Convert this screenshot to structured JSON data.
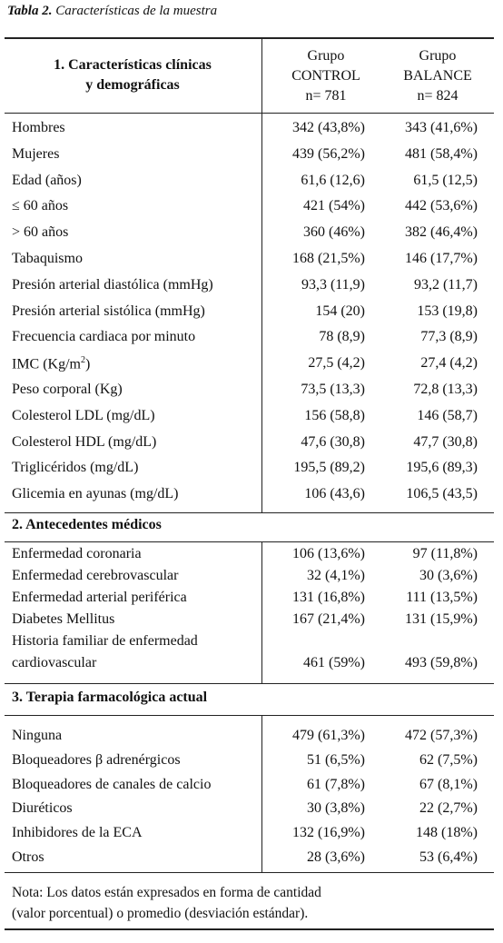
{
  "caption": {
    "bold": "Tabla 2.",
    "italic": " Características de la muestra"
  },
  "header": {
    "title_line1": "1. Características clínicas",
    "title_line2": "y demográficas",
    "col1": [
      "Grupo",
      "CONTROL",
      "n= 781"
    ],
    "col2": [
      "Grupo",
      "BALANCE",
      "n= 824"
    ]
  },
  "section1_rows": [
    {
      "label": "Hombres",
      "control": "342 (43,8%)",
      "balance": "343 (41,6%)"
    },
    {
      "label": "Mujeres",
      "control": "439 (56,2%)",
      "balance": "481 (58,4%)"
    },
    {
      "label": "Edad (años)",
      "control": "61,6 (12,6)",
      "balance": "61,5 (12,5)"
    },
    {
      "label": "≤ 60 años",
      "control": "421 (54%)",
      "balance": "442 (53,6%)"
    },
    {
      "label": "> 60 años",
      "control": "360 (46%)",
      "balance": "382 (46,4%)"
    },
    {
      "label": "Tabaquismo",
      "control": "168 (21,5%)",
      "balance": "146 (17,7%)"
    },
    {
      "label": "Presión arterial diastólica (mmHg)",
      "control": "93,3 (11,9)",
      "balance": "93,2 (11,7)"
    },
    {
      "label": "Presión arterial sistólica (mmHg)",
      "control": "154 (20)",
      "balance": "153 (19,8)"
    },
    {
      "label": "Frecuencia cardiaca por minuto",
      "control": "78 (8,9)",
      "balance": "77,3 (8,9)"
    },
    {
      "label": "IMC (Kg/m",
      "label_sup": "2",
      "label_tail": ")",
      "control": "27,5 (4,2)",
      "balance": "27,4 (4,2)"
    },
    {
      "label": "Peso corporal (Kg)",
      "control": "73,5 (13,3)",
      "balance": "72,8 (13,3)"
    },
    {
      "label": "Colesterol LDL (mg/dL)",
      "control": "156 (58,8)",
      "balance": "146 (58,7)"
    },
    {
      "label": "Colesterol HDL (mg/dL)",
      "control": "47,6 (30,8)",
      "balance": "47,7 (30,8)"
    },
    {
      "label": "Triglicéridos (mg/dL)",
      "control": "195,5 (89,2)",
      "balance": "195,6 (89,3)"
    },
    {
      "label": "Glicemia en ayunas (mg/dL)",
      "control": "106 (43,6)",
      "balance": "106,5 (43,5)"
    }
  ],
  "section2_title": "2. Antecedentes médicos",
  "section2_rows": [
    {
      "label": "Enfermedad coronaria",
      "control": "106 (13,6%)",
      "balance": "97 (11,8%)"
    },
    {
      "label": "Enfermedad cerebrovascular",
      "control": "32 (4,1%)",
      "balance": "30 (3,6%)"
    },
    {
      "label": "Enfermedad arterial periférica",
      "control": "131 (16,8%)",
      "balance": "111 (13,5%)"
    },
    {
      "label": "Diabetes Mellitus",
      "control": "167 (21,4%)",
      "balance": "131 (15,9%)"
    },
    {
      "label": "Historia familiar de enfermedad",
      "control": "",
      "balance": ""
    },
    {
      "label": "cardiovascular",
      "control": "461 (59%)",
      "balance": "493 (59,8%)"
    }
  ],
  "section3_title": "3. Terapia farmacológica actual",
  "section3_rows": [
    {
      "label": "Ninguna",
      "control": "479 (61,3%)",
      "balance": "472 (57,3%)"
    },
    {
      "label": "Bloqueadores β adrenérgicos",
      "control": "51 (6,5%)",
      "balance": "62 (7,5%)"
    },
    {
      "label": "Bloqueadores de canales de calcio",
      "control": "61 (7,8%)",
      "balance": "67 (8,1%)"
    },
    {
      "label": "Diuréticos",
      "control": "30 (3,8%)",
      "balance": "22 (2,7%)"
    },
    {
      "label": "Inhibidores de la ECA",
      "control": "132 (16,9%)",
      "balance": "148 (18%)"
    },
    {
      "label": "Otros",
      "control": "28 (3,6%)",
      "balance": "53 (6,4%)"
    }
  ],
  "note_line1": "Nota: Los datos están expresados en forma de cantidad",
  "note_line2": "(valor porcentual) o promedio (desviación estándar)."
}
